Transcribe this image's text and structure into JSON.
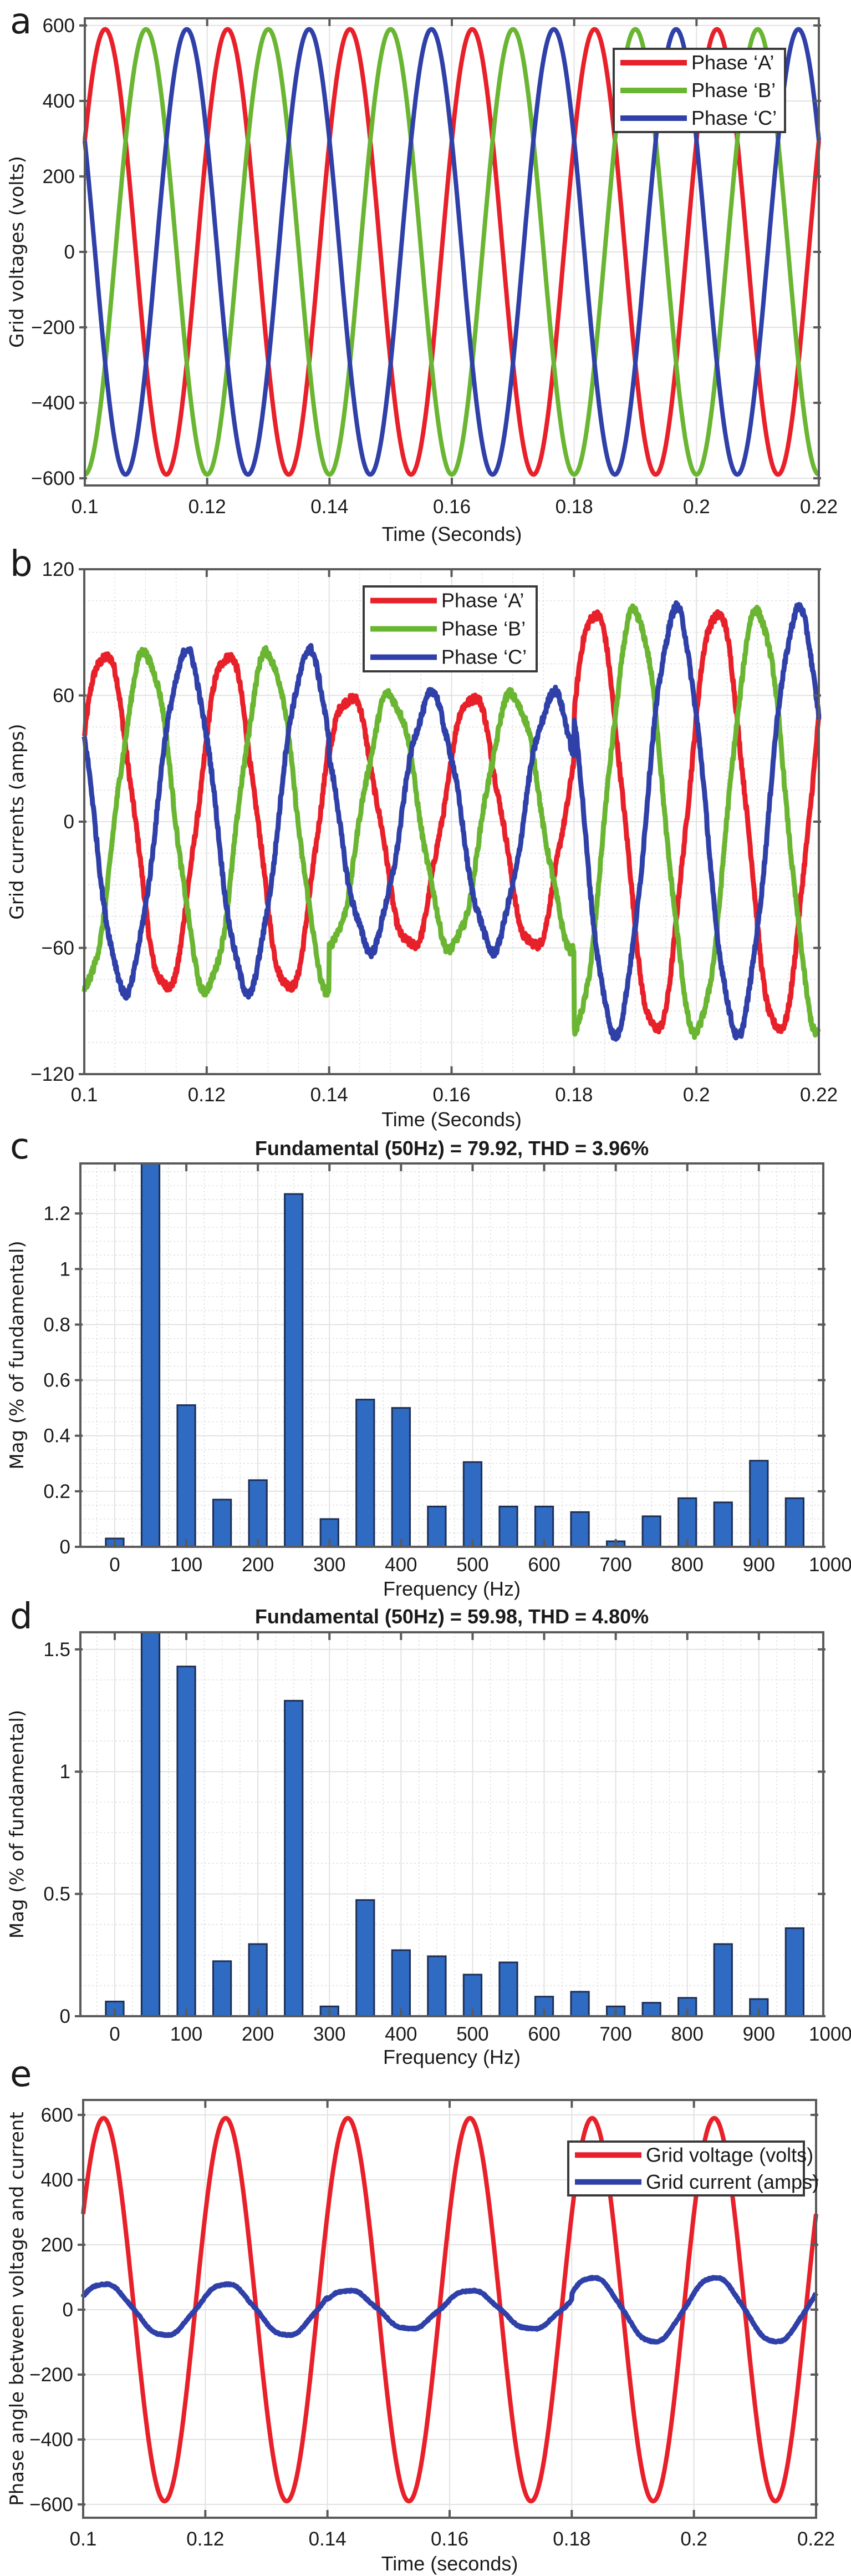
{
  "figure": {
    "panels": [
      "a",
      "b",
      "c",
      "d",
      "e"
    ]
  },
  "colors": {
    "phase_a": "#e8202a",
    "phase_b": "#6ab632",
    "phase_c": "#2f40a8",
    "bar_fill": "#2f6bc2",
    "bar_edge": "#1e2f55"
  },
  "chart_data": [
    {
      "id": "a",
      "type": "line",
      "title": "",
      "xlabel": "Time (Seconds)",
      "ylabel": "Grid voltages (volts)",
      "xlim": [
        0.1,
        0.22
      ],
      "ylim": [
        -619,
        619
      ],
      "xticks": [
        0.1,
        0.12,
        0.14,
        0.16,
        0.18,
        0.2,
        0.22
      ],
      "xtick_labels": [
        "0.1",
        "0.12",
        "0.14",
        "0.16",
        "0.18",
        "0.2",
        "0.22"
      ],
      "yticks": [
        -600,
        -400,
        -200,
        0,
        200,
        400,
        600
      ],
      "ytick_labels": [
        "−600",
        "−400",
        "−200",
        "0",
        "200",
        "400",
        "600"
      ],
      "grid": "major",
      "legend_position": "top-right",
      "frequency_hz": 50,
      "series": [
        {
          "name": "Phase ‘A’",
          "color_key": "phase_a",
          "amplitude": 590,
          "phase_deg": 30
        },
        {
          "name": "Phase ‘B’",
          "color_key": "phase_b",
          "amplitude": 590,
          "phase_deg": -90
        },
        {
          "name": "Phase ‘C’",
          "color_key": "phase_c",
          "amplitude": 590,
          "phase_deg": 150
        }
      ]
    },
    {
      "id": "b",
      "type": "line",
      "title": "",
      "xlabel": "Time (Seconds)",
      "ylabel": "Grid currents (amps)",
      "xlim": [
        0.1,
        0.22
      ],
      "ylim": [
        -120,
        120
      ],
      "xticks": [
        0.1,
        0.12,
        0.14,
        0.16,
        0.18,
        0.2,
        0.22
      ],
      "xtick_labels": [
        "0.1",
        "0.12",
        "0.14",
        "0.16",
        "0.18",
        "0.2",
        "0.22"
      ],
      "yticks": [
        -120,
        -60,
        0,
        60,
        120
      ],
      "ytick_labels": [
        "−120",
        "−60",
        "0",
        "60",
        "120"
      ],
      "grid": "major+minor",
      "legend_position": "top-center",
      "frequency_hz": 50,
      "amplitude_segments": [
        {
          "t_start": 0.1,
          "t_end": 0.14,
          "amplitude": 80
        },
        {
          "t_start": 0.14,
          "t_end": 0.18,
          "amplitude": 60
        },
        {
          "t_start": 0.18,
          "t_end": 0.22,
          "amplitude": 100
        }
      ],
      "series": [
        {
          "name": "Phase ‘A’",
          "color_key": "phase_a",
          "phase_deg": 30
        },
        {
          "name": "Phase ‘B’",
          "color_key": "phase_b",
          "phase_deg": -90
        },
        {
          "name": "Phase ‘C’",
          "color_key": "phase_c",
          "phase_deg": 150
        }
      ]
    },
    {
      "id": "c",
      "type": "bar",
      "title": "Fundamental (50Hz) = 79.92, THD = 3.96%",
      "xlabel": "Frequency (Hz)",
      "ylabel": "Mag (% of fundamental)",
      "xlim": [
        -48,
        990
      ],
      "ylim": [
        0,
        1.38
      ],
      "xticks": [
        0,
        100,
        200,
        300,
        400,
        500,
        600,
        700,
        800,
        900,
        1000
      ],
      "xtick_labels": [
        "0",
        "100",
        "200",
        "300",
        "400",
        "500",
        "600",
        "700",
        "800",
        "900",
        "1000"
      ],
      "yticks": [
        0,
        0.2,
        0.4,
        0.6,
        0.8,
        1,
        1.2
      ],
      "ytick_labels": [
        "0",
        "0.2",
        "0.4",
        "0.6",
        "0.8",
        "1",
        "1.2"
      ],
      "grid": "major+minor",
      "categories": [
        0,
        50,
        100,
        150,
        200,
        250,
        300,
        350,
        400,
        450,
        500,
        550,
        600,
        650,
        700,
        750,
        800,
        850,
        900,
        950
      ],
      "values": [
        0.03,
        1.38,
        0.51,
        0.17,
        0.24,
        1.27,
        0.1,
        0.53,
        0.5,
        0.145,
        0.305,
        0.145,
        0.145,
        0.125,
        0.02,
        0.11,
        0.175,
        0.16,
        0.31,
        0.175
      ],
      "clipped": [
        50
      ]
    },
    {
      "id": "d",
      "type": "bar",
      "title": "Fundamental (50Hz) = 59.98, THD = 4.80%",
      "xlabel": "Frequency (Hz)",
      "ylabel": "Mag (% of fundamental)",
      "xlim": [
        -48,
        990
      ],
      "ylim": [
        0,
        1.57
      ],
      "xticks": [
        0,
        100,
        200,
        300,
        400,
        500,
        600,
        700,
        800,
        900,
        1000
      ],
      "xtick_labels": [
        "0",
        "100",
        "200",
        "300",
        "400",
        "500",
        "600",
        "700",
        "800",
        "900",
        "1000"
      ],
      "yticks": [
        0,
        0.5,
        1,
        1.5
      ],
      "ytick_labels": [
        "0",
        "0.5",
        "1",
        "1.5"
      ],
      "grid": "major+minor",
      "categories": [
        0,
        50,
        100,
        150,
        200,
        250,
        300,
        350,
        400,
        450,
        500,
        550,
        600,
        650,
        700,
        750,
        800,
        850,
        900,
        950
      ],
      "values": [
        0.06,
        1.57,
        1.43,
        0.225,
        0.295,
        1.29,
        0.04,
        0.475,
        0.27,
        0.245,
        0.17,
        0.22,
        0.08,
        0.1,
        0.04,
        0.055,
        0.075,
        0.295,
        0.07,
        0.36
      ],
      "clipped": [
        50
      ]
    },
    {
      "id": "e",
      "type": "line",
      "title": "",
      "xlabel": "Time (seconds)",
      "ylabel": "Phase angle between voltage and current",
      "xlim": [
        0.1,
        0.22
      ],
      "ylim": [
        -641,
        646
      ],
      "xticks": [
        0.1,
        0.12,
        0.14,
        0.16,
        0.18,
        0.2,
        0.22
      ],
      "xtick_labels": [
        "0.1",
        "0.12",
        "0.14",
        "0.16",
        "0.18",
        "0.2",
        "0.22"
      ],
      "yticks": [
        -600,
        -400,
        -200,
        0,
        200,
        400,
        600
      ],
      "ytick_labels": [
        "−600",
        "−400",
        "−200",
        "0",
        "200",
        "400",
        "600"
      ],
      "grid": "major",
      "legend_position": "top-right",
      "frequency_hz": 50,
      "series": [
        {
          "name": "Grid voltage (volts)",
          "color_key": "phase_a",
          "phase_deg": 30,
          "amplitude_segments": [
            {
              "t_start": 0.1,
              "t_end": 0.22,
              "amplitude": 590
            }
          ]
        },
        {
          "name": "Grid current (amps)",
          "color_key": "phase_c",
          "phase_deg": 30,
          "amplitude_segments": [
            {
              "t_start": 0.1,
              "t_end": 0.14,
              "amplitude": 80
            },
            {
              "t_start": 0.14,
              "t_end": 0.18,
              "amplitude": 60
            },
            {
              "t_start": 0.18,
              "t_end": 0.22,
              "amplitude": 100
            }
          ]
        }
      ]
    }
  ]
}
